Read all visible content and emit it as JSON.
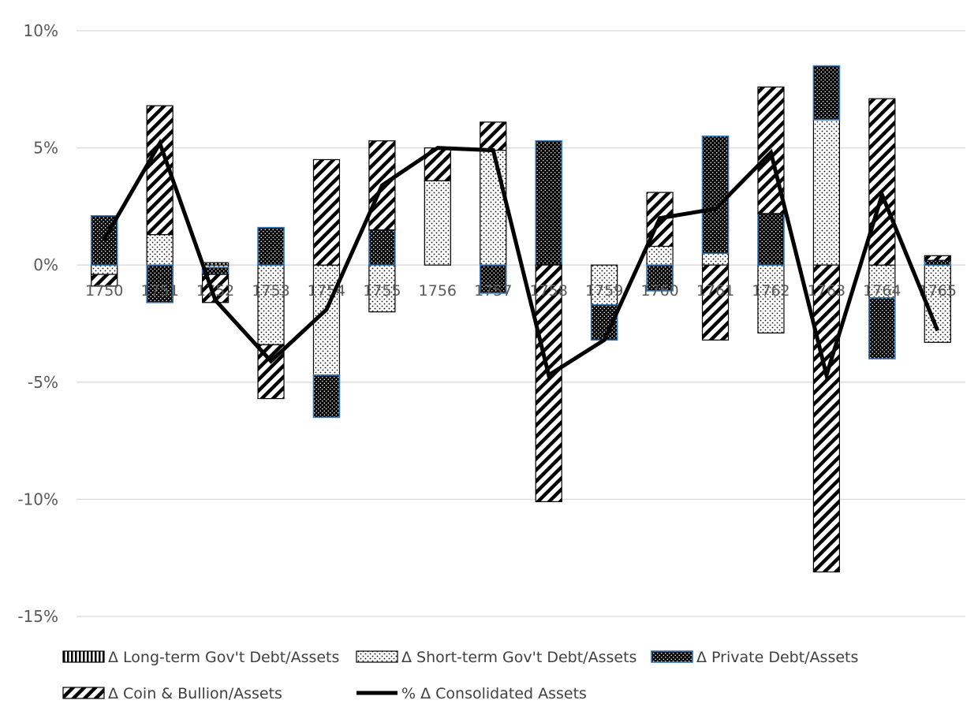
{
  "chart_data": {
    "type": "bar",
    "stacked": true,
    "title": "",
    "xlabel": "",
    "ylabel": "",
    "ylim": [
      -0.15,
      0.1
    ],
    "yticks": [
      0.1,
      0.05,
      0.0,
      -0.05,
      -0.1,
      -0.15
    ],
    "ytick_labels": [
      "10%",
      "5%",
      "0%",
      "-5%",
      "-10%",
      "-15%"
    ],
    "grid": true,
    "legend_position": "bottom",
    "categories": [
      "1750",
      "1751",
      "1752",
      "1753",
      "1754",
      "1755",
      "1756",
      "1757",
      "1758",
      "1759",
      "1760",
      "1761",
      "1762",
      "1763",
      "1764",
      "1765"
    ],
    "series": [
      {
        "name": "Δ Long-term Gov't Debt/Assets",
        "kind": "bar",
        "pattern": "vertical-lines",
        "values": [
          0,
          0,
          0.001,
          0,
          0,
          0,
          0,
          0,
          0,
          0,
          0,
          0,
          0,
          0,
          0,
          0
        ]
      },
      {
        "name": "Δ Short-term Gov't Debt/Assets",
        "kind": "bar",
        "pattern": "dots",
        "values": [
          -0.004,
          0.013,
          -0.001,
          -0.034,
          -0.047,
          -0.02,
          0.036,
          0.049,
          0,
          -0.017,
          0.008,
          0.005,
          -0.029,
          0.062,
          -0.014,
          -0.033
        ]
      },
      {
        "name": "Δ Private Debt/Assets",
        "kind": "bar",
        "pattern": "dense-dots",
        "border": "#2e75b6",
        "values": [
          0.021,
          -0.016,
          -0.003,
          0.016,
          -0.018,
          0.015,
          0,
          -0.012,
          0.053,
          -0.015,
          -0.011,
          0.05,
          0.022,
          0.023,
          -0.026,
          0.002
        ]
      },
      {
        "name": "Δ Coin & Bullion/Assets",
        "kind": "bar",
        "pattern": "diagonal-stripes",
        "values": [
          -0.005,
          0.055,
          -0.012,
          -0.023,
          0.045,
          0.038,
          0.014,
          0.012,
          -0.101,
          0,
          0.023,
          -0.032,
          0.054,
          -0.131,
          0.071,
          0.002
        ]
      },
      {
        "name": "% Δ Consolidated Assets",
        "kind": "line",
        "color": "#000000",
        "values": [
          0.011,
          0.052,
          -0.015,
          -0.041,
          -0.019,
          0.034,
          0.05,
          0.049,
          -0.047,
          -0.032,
          0.02,
          0.024,
          0.048,
          -0.047,
          0.03,
          -0.028
        ]
      }
    ]
  }
}
